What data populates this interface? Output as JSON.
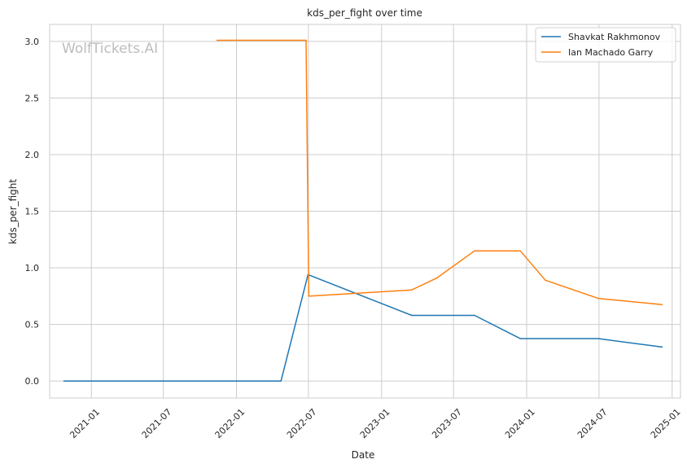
{
  "chart_data": {
    "type": "line",
    "title": "kds_per_fight over time",
    "xlabel": "Date",
    "ylabel": "kds_per_fight",
    "watermark": "WolfTickets.AI",
    "x_ticks": [
      "2021-01",
      "2021-07",
      "2022-01",
      "2022-07",
      "2023-01",
      "2023-07",
      "2024-01",
      "2024-07",
      "2025-01"
    ],
    "y_ticks": [
      "0.0",
      "0.5",
      "1.0",
      "1.5",
      "2.0",
      "2.5",
      "3.0"
    ],
    "xlim": [
      "2020-09-18",
      "2025-01-22"
    ],
    "ylim": [
      -0.15,
      3.15
    ],
    "grid": true,
    "legend_position": "top-right",
    "series": [
      {
        "name": "Shavkat Rakhmonov",
        "color": "#1f77b4",
        "points": [
          {
            "x": "2020-10-24",
            "y": 0.0
          },
          {
            "x": "2022-04-23",
            "y": 0.0
          },
          {
            "x": "2022-06-30",
            "y": 0.94
          },
          {
            "x": "2023-03-18",
            "y": 0.58
          },
          {
            "x": "2023-08-23",
            "y": 0.58
          },
          {
            "x": "2023-12-16",
            "y": 0.375
          },
          {
            "x": "2024-06-29",
            "y": 0.375
          },
          {
            "x": "2024-12-07",
            "y": 0.3
          }
        ]
      },
      {
        "name": "Ian Machado Garry",
        "color": "#ff7f0e",
        "points": [
          {
            "x": "2021-11-13",
            "y": 3.01
          },
          {
            "x": "2022-06-25",
            "y": 3.01
          },
          {
            "x": "2022-07-02",
            "y": 0.75
          },
          {
            "x": "2023-03-18",
            "y": 0.805
          },
          {
            "x": "2023-05-20",
            "y": 0.91
          },
          {
            "x": "2023-08-23",
            "y": 1.15
          },
          {
            "x": "2023-12-16",
            "y": 1.15
          },
          {
            "x": "2024-02-17",
            "y": 0.89
          },
          {
            "x": "2024-06-29",
            "y": 0.73
          },
          {
            "x": "2024-12-07",
            "y": 0.675
          }
        ]
      }
    ]
  }
}
